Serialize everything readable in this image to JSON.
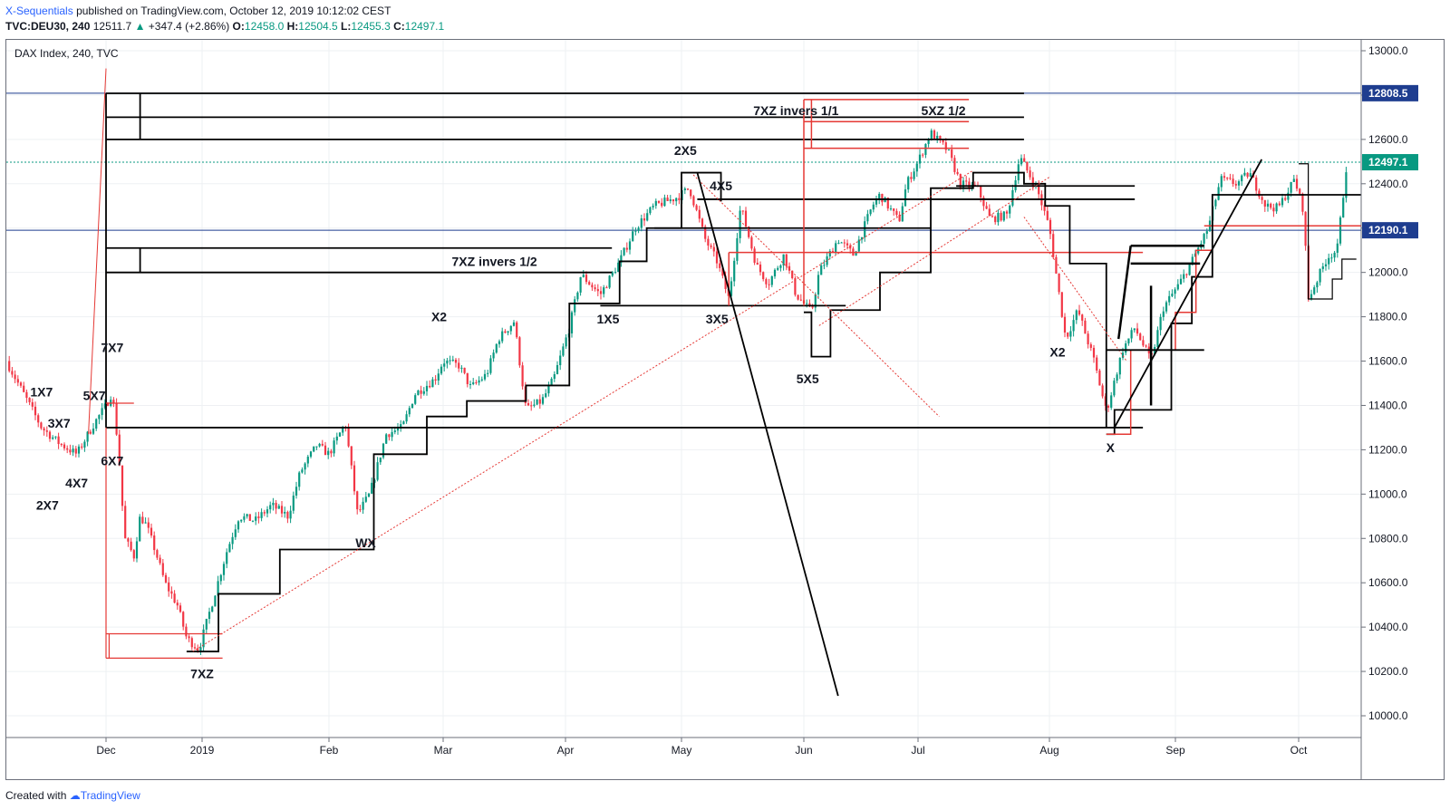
{
  "header": {
    "author": "X-Sequentials",
    "published": "published on TradingView.com, October 12, 2019 10:12:02 CEST",
    "symbol": "TVC:DEU30, 240",
    "last": "12511.7",
    "change_arrow": "▲",
    "change": "+347.4 (+2.86%)",
    "o_label": "O:",
    "o": "12458.0",
    "h_label": "H:",
    "h": "12504.5",
    "l_label": "L:",
    "l": "12455.3",
    "c_label": "C:",
    "c": "12497.1"
  },
  "footer": {
    "created_with": "Created with",
    "brand": "TradingView"
  },
  "colors": {
    "up": "#089981",
    "down": "#f23645",
    "black": "#000000",
    "red": "#e53935",
    "blue_line": "#1e3d8f",
    "teal_dotted": "#26a69a"
  },
  "chart_data": {
    "type": "candlestick",
    "title": "DAX Index, 240, TVC",
    "ylim": [
      9900,
      13060
    ],
    "y_ticks": [
      "13000.0",
      "12800.0",
      "12600.0",
      "12400.0",
      "12200.0",
      "12000.0",
      "11800.0",
      "11600.0",
      "11400.0",
      "11200.0",
      "11000.0",
      "10800.0",
      "10600.0",
      "10400.0",
      "10200.0",
      "10000.0"
    ],
    "x_ticks": [
      "Dec",
      "2019",
      "Feb",
      "Mar",
      "Apr",
      "May",
      "Jun",
      "Jul",
      "Aug",
      "Sep",
      "Oct"
    ],
    "price_marks": [
      {
        "label": "12808.5",
        "color": "#1e3d8f",
        "style": "solid"
      },
      {
        "label": "12497.1",
        "color": "#089981",
        "style": "dotted"
      },
      {
        "label": "12190.1",
        "color": "#1e3d8f",
        "style": "solid"
      }
    ],
    "close_path": [
      [
        "2018-11-14",
        11600
      ],
      [
        "2018-11-17",
        11450
      ],
      [
        "2018-11-20",
        11300
      ],
      [
        "2018-11-23",
        11230
      ],
      [
        "2018-11-26",
        11180
      ],
      [
        "2018-11-29",
        11320
      ],
      [
        "2018-12-01",
        11400
      ],
      [
        "2018-12-03",
        11460
      ],
      [
        "2018-12-05",
        11200
      ],
      [
        "2018-12-07",
        10800
      ],
      [
        "2018-12-10",
        10720
      ],
      [
        "2018-12-12",
        10900
      ],
      [
        "2018-12-14",
        10860
      ],
      [
        "2018-12-17",
        10740
      ],
      [
        "2018-12-20",
        10600
      ],
      [
        "2018-12-24",
        10500
      ],
      [
        "2018-12-27",
        10350
      ],
      [
        "2018-12-31",
        10300
      ],
      [
        "2019-01-03",
        10480
      ],
      [
        "2019-01-07",
        10740
      ],
      [
        "2019-01-10",
        10900
      ],
      [
        "2019-01-14",
        10880
      ],
      [
        "2019-01-18",
        10950
      ],
      [
        "2019-01-22",
        10900
      ],
      [
        "2019-01-25",
        11100
      ],
      [
        "2019-01-29",
        11220
      ],
      [
        "2019-02-01",
        11180
      ],
      [
        "2019-02-05",
        11320
      ],
      [
        "2019-02-08",
        10910
      ],
      [
        "2019-02-11",
        11000
      ],
      [
        "2019-02-15",
        11270
      ],
      [
        "2019-02-19",
        11300
      ],
      [
        "2019-02-22",
        11450
      ],
      [
        "2019-02-27",
        11520
      ],
      [
        "2019-03-01",
        11600
      ],
      [
        "2019-03-05",
        11580
      ],
      [
        "2019-03-08",
        11480
      ],
      [
        "2019-03-12",
        11540
      ],
      [
        "2019-03-15",
        11700
      ],
      [
        "2019-03-19",
        11780
      ],
      [
        "2019-03-22",
        11380
      ],
      [
        "2019-03-26",
        11420
      ],
      [
        "2019-03-29",
        11520
      ],
      [
        "2019-04-02",
        11750
      ],
      [
        "2019-04-05",
        11990
      ],
      [
        "2019-04-10",
        11900
      ],
      [
        "2019-04-15",
        12050
      ],
      [
        "2019-04-19",
        12200
      ],
      [
        "2019-04-24",
        12300
      ],
      [
        "2019-04-30",
        12340
      ],
      [
        "2019-05-03",
        12380
      ],
      [
        "2019-05-07",
        12150
      ],
      [
        "2019-05-10",
        12050
      ],
      [
        "2019-05-13",
        11880
      ],
      [
        "2019-05-16",
        12300
      ],
      [
        "2019-05-20",
        12030
      ],
      [
        "2019-05-23",
        11950
      ],
      [
        "2019-05-27",
        12080
      ],
      [
        "2019-05-30",
        11900
      ],
      [
        "2019-06-03",
        11820
      ],
      [
        "2019-06-05",
        12000
      ],
      [
        "2019-06-10",
        12150
      ],
      [
        "2019-06-14",
        12080
      ],
      [
        "2019-06-19",
        12300
      ],
      [
        "2019-06-21",
        12350
      ],
      [
        "2019-06-26",
        12230
      ],
      [
        "2019-06-28",
        12400
      ],
      [
        "2019-07-01",
        12500
      ],
      [
        "2019-07-04",
        12630
      ],
      [
        "2019-07-08",
        12550
      ],
      [
        "2019-07-11",
        12400
      ],
      [
        "2019-07-15",
        12380
      ],
      [
        "2019-07-18",
        12240
      ],
      [
        "2019-07-22",
        12260
      ],
      [
        "2019-07-25",
        12520
      ],
      [
        "2019-07-29",
        12380
      ],
      [
        "2019-08-01",
        12200
      ],
      [
        "2019-08-05",
        11700
      ],
      [
        "2019-08-08",
        11830
      ],
      [
        "2019-08-12",
        11600
      ],
      [
        "2019-08-15",
        11370
      ],
      [
        "2019-08-19",
        11650
      ],
      [
        "2019-08-22",
        11750
      ],
      [
        "2019-08-26",
        11600
      ],
      [
        "2019-08-29",
        11840
      ],
      [
        "2019-09-02",
        11950
      ],
      [
        "2019-09-05",
        12050
      ],
      [
        "2019-09-09",
        12200
      ],
      [
        "2019-09-12",
        12420
      ],
      [
        "2019-09-16",
        12400
      ],
      [
        "2019-09-19",
        12450
      ],
      [
        "2019-09-23",
        12300
      ],
      [
        "2019-09-26",
        12290
      ],
      [
        "2019-09-30",
        12420
      ],
      [
        "2019-10-02",
        12280
      ],
      [
        "2019-10-03",
        11880
      ],
      [
        "2019-10-07",
        12070
      ],
      [
        "2019-10-09",
        12100
      ],
      [
        "2019-10-11",
        12497
      ]
    ],
    "annotations": [
      {
        "text": "1X7",
        "x": "2018-11-20",
        "y": 11440
      },
      {
        "text": "5X7",
        "x": "2018-11-29",
        "y": 11425
      },
      {
        "text": "3X7",
        "x": "2018-11-23",
        "y": 11300
      },
      {
        "text": "7X7",
        "x": "2018-12-03",
        "y": 11640
      },
      {
        "text": "6X7",
        "x": "2018-12-03",
        "y": 11130
      },
      {
        "text": "4X7",
        "x": "2018-11-26",
        "y": 11030
      },
      {
        "text": "2X7",
        "x": "2018-11-21",
        "y": 10930
      },
      {
        "text": "7XZ",
        "x": "2019-01-01",
        "y": 10170
      },
      {
        "text": "WX",
        "x": "2019-02-10",
        "y": 10760
      },
      {
        "text": "X2",
        "x": "2019-02-28",
        "y": 11780
      },
      {
        "text": "7XZ invers 1/2",
        "x": "2019-03-14",
        "y": 12030
      },
      {
        "text": "1X5",
        "x": "2019-04-12",
        "y": 11770
      },
      {
        "text": "2X5",
        "x": "2019-05-02",
        "y": 12530
      },
      {
        "text": "4X5",
        "x": "2019-05-11",
        "y": 12370
      },
      {
        "text": "3X5",
        "x": "2019-05-10",
        "y": 11770
      },
      {
        "text": "5X5",
        "x": "2019-06-02",
        "y": 11500
      },
      {
        "text": "7XZ invers 1/1",
        "x": "2019-05-30",
        "y": 12710
      },
      {
        "text": "5XZ 1/2",
        "x": "2019-07-07",
        "y": 12710
      },
      {
        "text": "X2",
        "x": "2019-08-03",
        "y": 11620
      },
      {
        "text": "X",
        "x": "2019-08-16",
        "y": 11190
      }
    ]
  }
}
